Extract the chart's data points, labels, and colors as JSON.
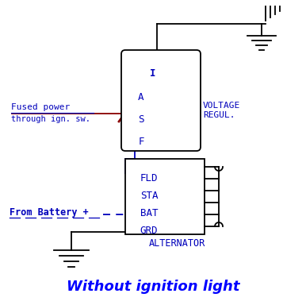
{
  "bg_color": "#ffffff",
  "line_color": "#000000",
  "blue_color": "#0000bb",
  "red_color": "#880000",
  "title": "Without ignition light",
  "title_color": "#0000ff",
  "title_fontsize": 13,
  "reg_labels": [
    "I",
    "A",
    "S",
    "F"
  ],
  "alt_labels": [
    "FLD",
    "STA",
    "BAT",
    "GRD"
  ],
  "voltage_label": "VOLTAGE\nREGUL.",
  "alternator_label": "ALTERNATOR",
  "fused_power_line1": "Fused power",
  "fused_power_line2": "through ign. sw.",
  "from_battery": "From Battery +"
}
